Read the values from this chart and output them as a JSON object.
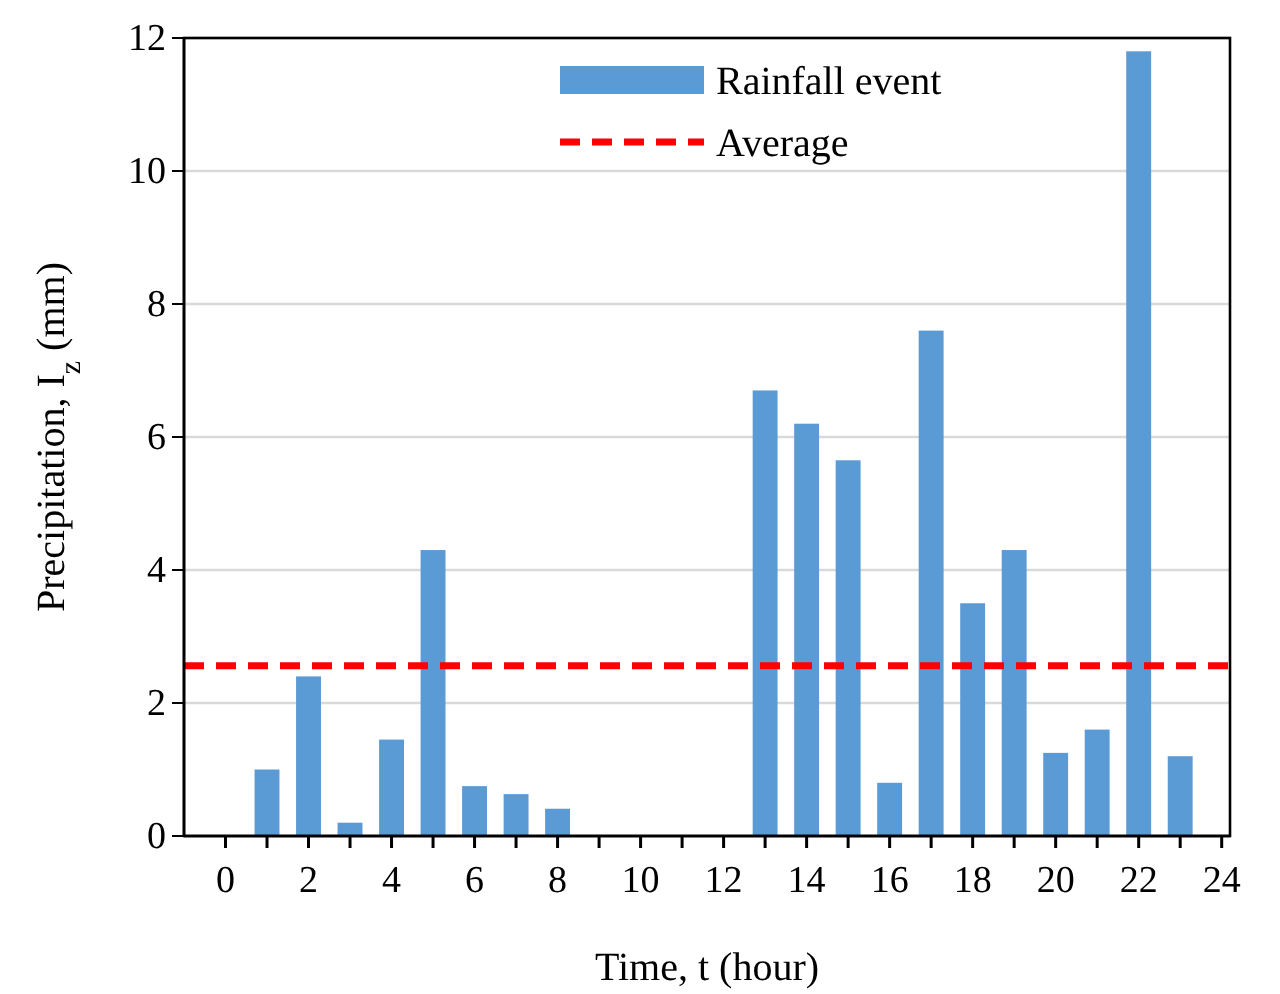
{
  "chart_data": {
    "type": "bar",
    "xlabel": "Time, t (hour)",
    "ylabel": "Precipitation, I$_{z}$ (mm)",
    "x": [
      1,
      2,
      3,
      4,
      5,
      6,
      7,
      8,
      9,
      10,
      11,
      12,
      13,
      14,
      15,
      16,
      17,
      18,
      19,
      20,
      21,
      22,
      23
    ],
    "series": [
      {
        "name": "Rainfall event",
        "color": "#5b9bd5",
        "values": [
          1.0,
          2.4,
          0.2,
          1.45,
          4.3,
          0.75,
          0.63,
          0.41,
          null,
          null,
          null,
          null,
          6.7,
          6.2,
          5.65,
          0.8,
          7.6,
          3.5,
          4.3,
          1.25,
          1.6,
          11.8,
          1.2
        ]
      }
    ],
    "xlim": [
      -1,
      24.2
    ],
    "xticks": [
      0,
      {
        "value": 1,
        "label": null
      },
      2,
      {
        "value": 3,
        "label": null
      },
      4,
      {
        "value": 5,
        "label": null
      },
      6,
      {
        "value": 7,
        "label": null
      },
      8,
      {
        "value": 9,
        "label": null
      },
      10,
      {
        "value": 11,
        "label": null
      },
      12,
      {
        "value": 13,
        "label": null
      },
      14,
      {
        "value": 15,
        "label": null
      },
      16,
      {
        "value": 17,
        "label": null
      },
      18,
      {
        "value": 19,
        "label": null
      },
      20,
      {
        "value": 21,
        "label": null
      },
      22,
      {
        "value": 23,
        "label": null
      },
      24
    ],
    "ylim": [
      0,
      12
    ],
    "yticks": [
      0,
      2,
      4,
      6,
      8,
      10,
      12
    ],
    "grid": "y",
    "legend": "top",
    "ref_lines": [
      {
        "axis": "y",
        "value": 2.56,
        "label": "Average",
        "color": "#ff0000",
        "line_style": "dashed"
      }
    ]
  }
}
